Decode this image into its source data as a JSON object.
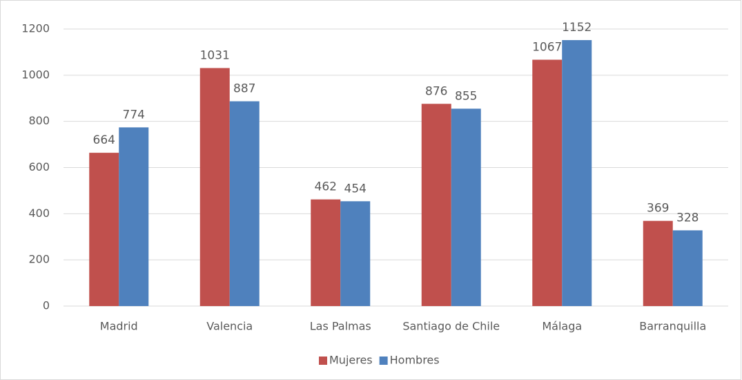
{
  "chart_data": {
    "type": "bar",
    "categories": [
      "Madrid",
      "Valencia",
      "Las Palmas",
      "Santiago de Chile",
      "Málaga",
      "Barranquilla"
    ],
    "series": [
      {
        "name": "Mujeres",
        "color": "#c0504d",
        "values": [
          664,
          1031,
          462,
          876,
          1067,
          369
        ]
      },
      {
        "name": "Hombres",
        "color": "#4f81bd",
        "values": [
          774,
          887,
          454,
          855,
          1152,
          328
        ]
      }
    ],
    "ylim": [
      0,
      1200
    ],
    "yticks": [
      0,
      200,
      400,
      600,
      800,
      1000,
      1200
    ],
    "grid": true,
    "legend": "bottom"
  }
}
